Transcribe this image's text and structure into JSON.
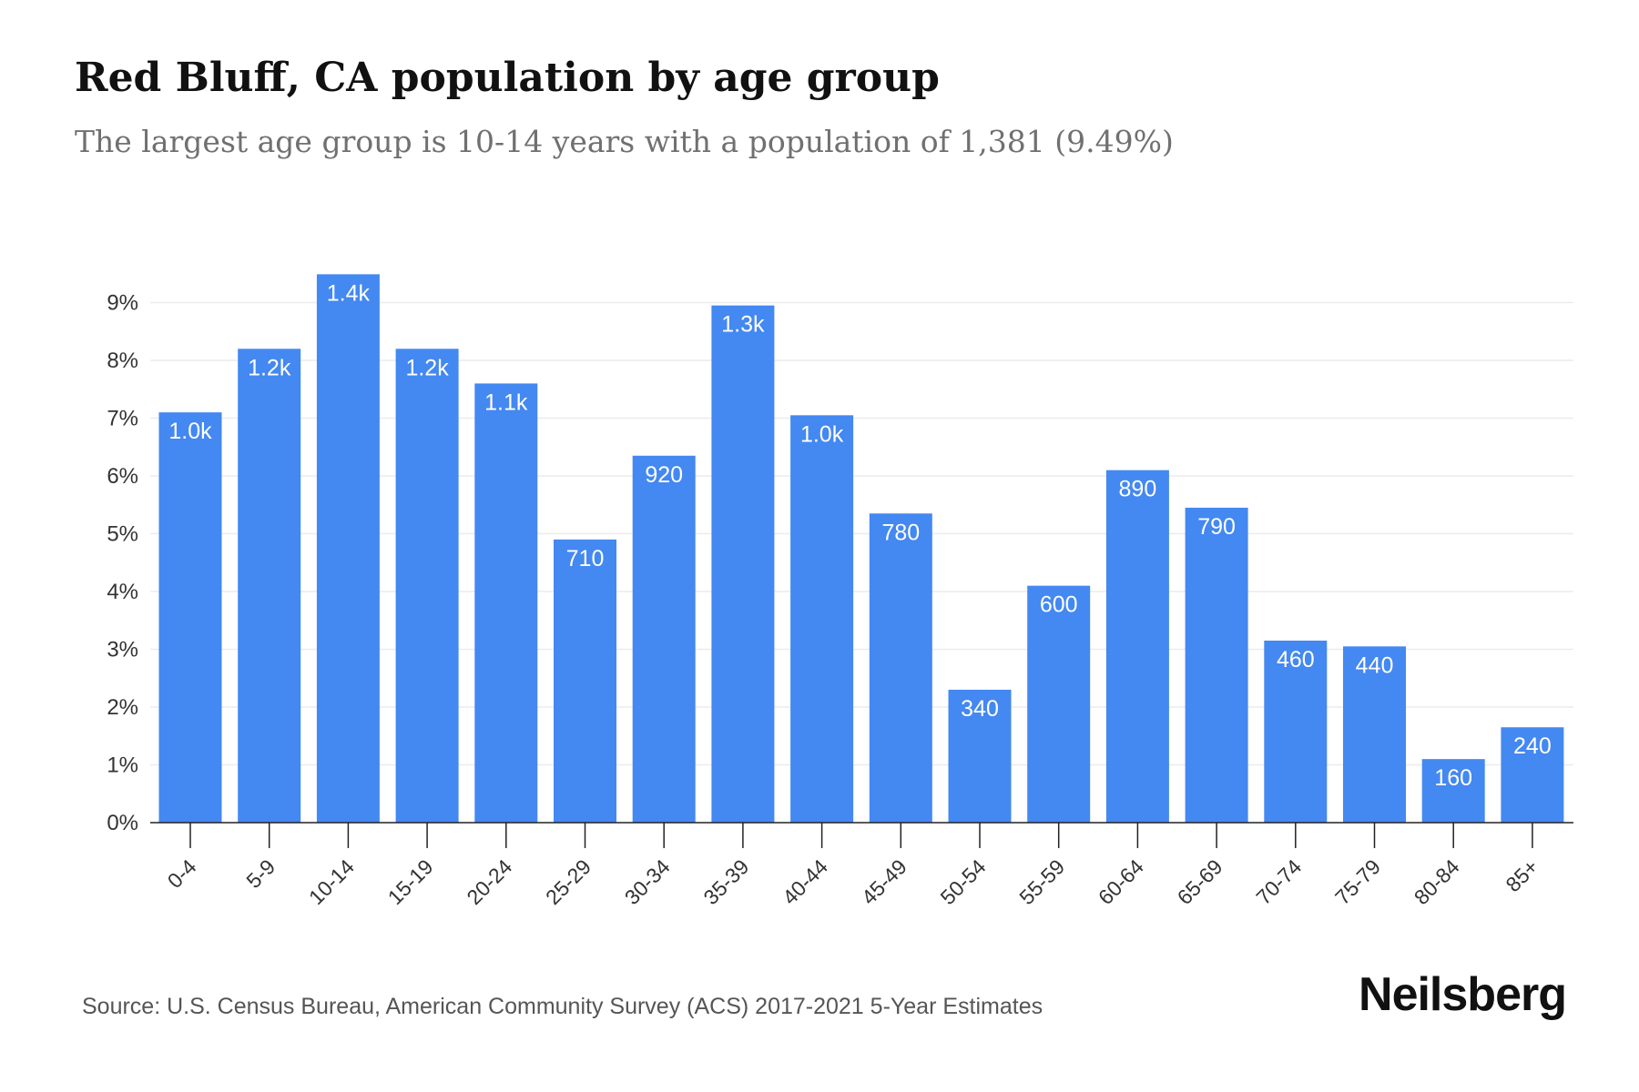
{
  "header": {
    "title": "Red Bluff, CA population by age group",
    "subtitle": "The largest age group is 10-14 years with a population of 1,381 (9.49%)"
  },
  "footer": {
    "source": "Source: U.S. Census Bureau, American Community Survey (ACS) 2017-2021 5-Year Estimates",
    "brand": "Neilsberg"
  },
  "colors": {
    "bar": "#4488f1",
    "grid": "#ececec",
    "axis": "#222222",
    "label": "#ffffff"
  },
  "chart_data": {
    "type": "bar",
    "title": "Red Bluff, CA population by age group",
    "subtitle": "The largest age group is 10-14 years with a population of 1,381 (9.49%)",
    "xlabel": "",
    "ylabel": "",
    "ylim": [
      0,
      9.5
    ],
    "yticks": [
      "0%",
      "1%",
      "2%",
      "3%",
      "4%",
      "5%",
      "6%",
      "7%",
      "8%",
      "9%"
    ],
    "ytick_values": [
      0,
      1,
      2,
      3,
      4,
      5,
      6,
      7,
      8,
      9
    ],
    "categories": [
      "0-4",
      "5-9",
      "10-14",
      "15-19",
      "20-24",
      "25-29",
      "30-34",
      "35-39",
      "40-44",
      "45-49",
      "50-54",
      "55-59",
      "60-64",
      "65-69",
      "70-74",
      "75-79",
      "80-84",
      "85+"
    ],
    "values": [
      7.1,
      8.2,
      9.49,
      8.2,
      7.6,
      4.9,
      6.35,
      8.95,
      7.05,
      5.35,
      2.3,
      4.1,
      6.1,
      5.45,
      3.15,
      3.05,
      1.1,
      1.65
    ],
    "data_labels": [
      "1.0k",
      "1.2k",
      "1.4k",
      "1.2k",
      "1.1k",
      "710",
      "920",
      "1.3k",
      "1.0k",
      "780",
      "340",
      "600",
      "890",
      "790",
      "460",
      "440",
      "160",
      "240"
    ],
    "grid": true,
    "legend": "none"
  }
}
